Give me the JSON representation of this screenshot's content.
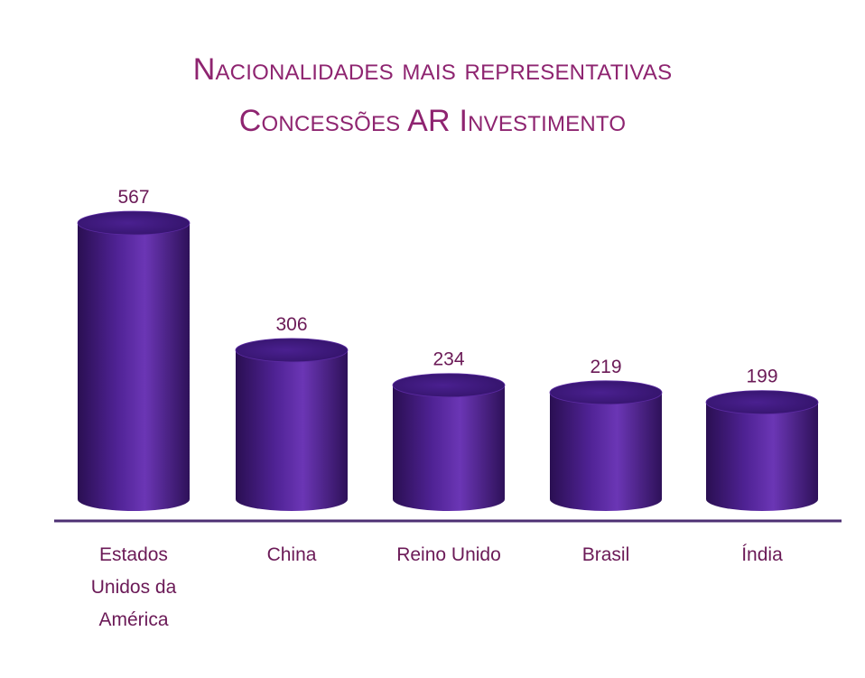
{
  "chart_data": {
    "type": "bar",
    "style": "3d-cylinder",
    "title_lines": [
      "Nacionalidades mais representativas",
      "Concessões AR Investimento"
    ],
    "categories": [
      [
        "Estados",
        "Unidos da",
        "América"
      ],
      [
        "China"
      ],
      [
        "Reino Unido"
      ],
      [
        "Brasil"
      ],
      [
        "Índia"
      ]
    ],
    "values": [
      567,
      306,
      234,
      219,
      199
    ],
    "ylim": [
      0,
      600
    ],
    "grid": false,
    "legend": "none",
    "colors": {
      "bar_dark": "#2a0f52",
      "bar_mid": "#4f2294",
      "bar_light": "#6b36b5",
      "bar_top": "#3b1878",
      "value_label": "#6b1a57",
      "category_label": "#6b1a57",
      "baseline": "#4c2f73"
    }
  }
}
